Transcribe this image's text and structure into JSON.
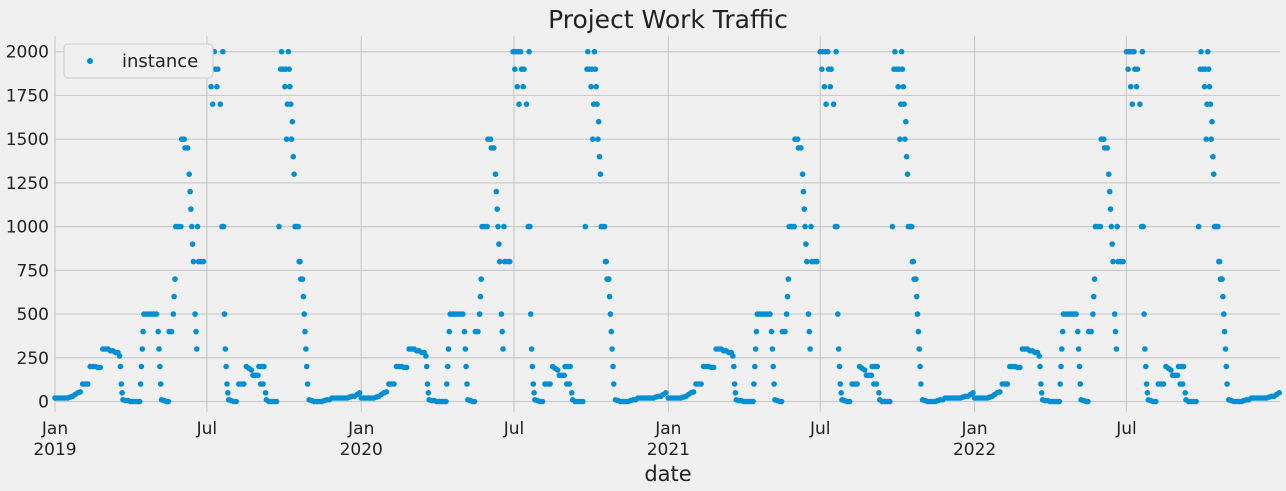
{
  "chart_data": {
    "type": "scatter",
    "title": "Project Work Traffic",
    "xlabel": "date",
    "ylabel": "",
    "ylim": [
      -60,
      2090
    ],
    "xlim": [
      "2019-01-01",
      "2022-12-31"
    ],
    "grid": true,
    "legend_position": "top-left",
    "yticks": [
      0,
      250,
      500,
      750,
      1000,
      1250,
      1500,
      1750,
      2000
    ],
    "xticks": [
      {
        "date": "2019-01-01",
        "label": "Jan",
        "sublabel": "2019"
      },
      {
        "date": "2019-07-01",
        "label": "Jul",
        "sublabel": ""
      },
      {
        "date": "2020-01-01",
        "label": "Jan",
        "sublabel": "2020"
      },
      {
        "date": "2020-07-01",
        "label": "Jul",
        "sublabel": ""
      },
      {
        "date": "2021-01-01",
        "label": "Jan",
        "sublabel": "2021"
      },
      {
        "date": "2021-07-01",
        "label": "Jul",
        "sublabel": ""
      },
      {
        "date": "2022-01-01",
        "label": "Jan",
        "sublabel": "2022"
      },
      {
        "date": "2022-07-01",
        "label": "Jul",
        "sublabel": ""
      }
    ],
    "series": [
      {
        "name": "instance",
        "color": "#008fd5",
        "marker": "dot",
        "points": [
          {
            "x": "2019-01-01",
            "y": 20
          },
          {
            "x": "2019-01-04",
            "y": 20
          },
          {
            "x": "2019-01-07",
            "y": 20
          },
          {
            "x": "2019-01-10",
            "y": 20
          },
          {
            "x": "2019-01-13",
            "y": 20
          },
          {
            "x": "2019-01-16",
            "y": 20
          },
          {
            "x": "2019-01-19",
            "y": 25
          },
          {
            "x": "2019-01-22",
            "y": 30
          },
          {
            "x": "2019-01-25",
            "y": 40
          },
          {
            "x": "2019-01-28",
            "y": 50
          },
          {
            "x": "2019-01-31",
            "y": 55
          },
          {
            "x": "2019-02-03",
            "y": 100
          },
          {
            "x": "2019-02-06",
            "y": 100
          },
          {
            "x": "2019-02-09",
            "y": 100
          },
          {
            "x": "2019-02-12",
            "y": 200
          },
          {
            "x": "2019-02-15",
            "y": 200
          },
          {
            "x": "2019-02-18",
            "y": 200
          },
          {
            "x": "2019-02-21",
            "y": 195
          },
          {
            "x": "2019-02-24",
            "y": 195
          },
          {
            "x": "2019-02-27",
            "y": 300
          },
          {
            "x": "2019-03-02",
            "y": 300
          },
          {
            "x": "2019-03-05",
            "y": 300
          },
          {
            "x": "2019-03-08",
            "y": 290
          },
          {
            "x": "2019-03-11",
            "y": 290
          },
          {
            "x": "2019-03-14",
            "y": 280
          },
          {
            "x": "2019-03-17",
            "y": 280
          },
          {
            "x": "2019-03-19",
            "y": 260
          },
          {
            "x": "2019-03-20",
            "y": 200
          },
          {
            "x": "2019-03-21",
            "y": 100
          },
          {
            "x": "2019-03-22",
            "y": 50
          },
          {
            "x": "2019-03-23",
            "y": 10
          },
          {
            "x": "2019-03-26",
            "y": 5
          },
          {
            "x": "2019-03-29",
            "y": 5
          },
          {
            "x": "2019-04-01",
            "y": 0
          },
          {
            "x": "2019-04-04",
            "y": 0
          },
          {
            "x": "2019-04-07",
            "y": 0
          },
          {
            "x": "2019-04-10",
            "y": 0
          },
          {
            "x": "2019-04-12",
            "y": 0
          },
          {
            "x": "2019-04-13",
            "y": 100
          },
          {
            "x": "2019-04-14",
            "y": 200
          },
          {
            "x": "2019-04-15",
            "y": 300
          },
          {
            "x": "2019-04-16",
            "y": 400
          },
          {
            "x": "2019-04-17",
            "y": 500
          },
          {
            "x": "2019-04-20",
            "y": 500
          },
          {
            "x": "2019-04-23",
            "y": 500
          },
          {
            "x": "2019-04-26",
            "y": 500
          },
          {
            "x": "2019-04-29",
            "y": 500
          },
          {
            "x": "2019-05-02",
            "y": 500
          },
          {
            "x": "2019-05-04",
            "y": 400
          },
          {
            "x": "2019-05-05",
            "y": 300
          },
          {
            "x": "2019-05-06",
            "y": 200
          },
          {
            "x": "2019-05-07",
            "y": 100
          },
          {
            "x": "2019-05-08",
            "y": 10
          },
          {
            "x": "2019-05-11",
            "y": 5
          },
          {
            "x": "2019-05-14",
            "y": 0
          },
          {
            "x": "2019-05-16",
            "y": 0
          },
          {
            "x": "2019-05-17",
            "y": 400
          },
          {
            "x": "2019-05-20",
            "y": 400
          },
          {
            "x": "2019-05-22",
            "y": 500
          },
          {
            "x": "2019-05-23",
            "y": 600
          },
          {
            "x": "2019-05-24",
            "y": 700
          },
          {
            "x": "2019-05-25",
            "y": 1000
          },
          {
            "x": "2019-05-28",
            "y": 1000
          },
          {
            "x": "2019-05-31",
            "y": 1000
          },
          {
            "x": "2019-06-01",
            "y": 1500
          },
          {
            "x": "2019-06-04",
            "y": 1500
          },
          {
            "x": "2019-06-05",
            "y": 1450
          },
          {
            "x": "2019-06-08",
            "y": 1450
          },
          {
            "x": "2019-06-10",
            "y": 1300
          },
          {
            "x": "2019-06-11",
            "y": 1200
          },
          {
            "x": "2019-06-12",
            "y": 1100
          },
          {
            "x": "2019-06-13",
            "y": 1000
          },
          {
            "x": "2019-06-14",
            "y": 900
          },
          {
            "x": "2019-06-15",
            "y": 800
          },
          {
            "x": "2019-06-17",
            "y": 500
          },
          {
            "x": "2019-06-18",
            "y": 400
          },
          {
            "x": "2019-06-19",
            "y": 300
          },
          {
            "x": "2019-06-20",
            "y": 1000
          },
          {
            "x": "2019-06-21",
            "y": 800
          },
          {
            "x": "2019-06-24",
            "y": 800
          },
          {
            "x": "2019-06-27",
            "y": 800
          },
          {
            "x": "2019-07-01",
            "y": 2000
          },
          {
            "x": "2019-07-04",
            "y": 2000
          },
          {
            "x": "2019-07-07",
            "y": 2000
          },
          {
            "x": "2019-07-10",
            "y": 2000
          },
          {
            "x": "2019-07-03",
            "y": 1900
          },
          {
            "x": "2019-07-06",
            "y": 1800
          },
          {
            "x": "2019-07-08",
            "y": 1700
          },
          {
            "x": "2019-07-11",
            "y": 1900
          },
          {
            "x": "2019-07-13",
            "y": 1800
          },
          {
            "x": "2019-07-14",
            "y": 1900
          },
          {
            "x": "2019-07-17",
            "y": 1700
          },
          {
            "x": "2019-07-19",
            "y": 1000
          },
          {
            "x": "2019-07-21",
            "y": 1000
          },
          {
            "x": "2019-07-20",
            "y": 2000
          },
          {
            "x": "2019-07-22",
            "y": 500
          },
          {
            "x": "2019-07-23",
            "y": 300
          },
          {
            "x": "2019-07-24",
            "y": 200
          },
          {
            "x": "2019-07-25",
            "y": 100
          },
          {
            "x": "2019-07-26",
            "y": 50
          },
          {
            "x": "2019-07-27",
            "y": 10
          },
          {
            "x": "2019-07-30",
            "y": 5
          },
          {
            "x": "2019-08-02",
            "y": 0
          },
          {
            "x": "2019-08-05",
            "y": 0
          },
          {
            "x": "2019-08-08",
            "y": 100
          },
          {
            "x": "2019-08-11",
            "y": 100
          },
          {
            "x": "2019-08-14",
            "y": 100
          },
          {
            "x": "2019-08-17",
            "y": 200
          },
          {
            "x": "2019-08-20",
            "y": 190
          },
          {
            "x": "2019-08-23",
            "y": 180
          },
          {
            "x": "2019-08-25",
            "y": 150
          },
          {
            "x": "2019-08-28",
            "y": 150
          },
          {
            "x": "2019-08-31",
            "y": 150
          },
          {
            "x": "2019-09-01",
            "y": 200
          },
          {
            "x": "2019-09-04",
            "y": 200
          },
          {
            "x": "2019-09-07",
            "y": 200
          },
          {
            "x": "2019-09-03",
            "y": 100
          },
          {
            "x": "2019-09-06",
            "y": 100
          },
          {
            "x": "2019-09-09",
            "y": 50
          },
          {
            "x": "2019-09-10",
            "y": 10
          },
          {
            "x": "2019-09-13",
            "y": 0
          },
          {
            "x": "2019-09-16",
            "y": 0
          },
          {
            "x": "2019-09-19",
            "y": 0
          },
          {
            "x": "2019-09-22",
            "y": 0
          },
          {
            "x": "2019-09-25",
            "y": 1000
          },
          {
            "x": "2019-09-28",
            "y": 2000
          },
          {
            "x": "2019-09-27",
            "y": 1900
          },
          {
            "x": "2019-09-30",
            "y": 1900
          },
          {
            "x": "2019-10-03",
            "y": 1900
          },
          {
            "x": "2019-10-02",
            "y": 1800
          },
          {
            "x": "2019-10-05",
            "y": 1700
          },
          {
            "x": "2019-10-04",
            "y": 1500
          },
          {
            "x": "2019-10-06",
            "y": 2000
          },
          {
            "x": "2019-10-07",
            "y": 1900
          },
          {
            "x": "2019-10-08",
            "y": 1800
          },
          {
            "x": "2019-10-09",
            "y": 1700
          },
          {
            "x": "2019-10-10",
            "y": 1500
          },
          {
            "x": "2019-10-11",
            "y": 1600
          },
          {
            "x": "2019-10-12",
            "y": 1400
          },
          {
            "x": "2019-10-13",
            "y": 1300
          },
          {
            "x": "2019-10-14",
            "y": 1000
          },
          {
            "x": "2019-10-16",
            "y": 1000
          },
          {
            "x": "2019-10-18",
            "y": 1000
          },
          {
            "x": "2019-10-19",
            "y": 800
          },
          {
            "x": "2019-10-20",
            "y": 800
          },
          {
            "x": "2019-10-21",
            "y": 700
          },
          {
            "x": "2019-10-23",
            "y": 700
          },
          {
            "x": "2019-10-24",
            "y": 600
          },
          {
            "x": "2019-10-25",
            "y": 500
          },
          {
            "x": "2019-10-26",
            "y": 400
          },
          {
            "x": "2019-10-27",
            "y": 300
          },
          {
            "x": "2019-10-28",
            "y": 200
          },
          {
            "x": "2019-10-29",
            "y": 100
          },
          {
            "x": "2019-10-31",
            "y": 10
          },
          {
            "x": "2019-11-03",
            "y": 5
          },
          {
            "x": "2019-11-06",
            "y": 0
          },
          {
            "x": "2019-11-09",
            "y": 0
          },
          {
            "x": "2019-11-12",
            "y": 0
          },
          {
            "x": "2019-11-15",
            "y": 0
          },
          {
            "x": "2019-11-18",
            "y": 5
          },
          {
            "x": "2019-11-21",
            "y": 10
          },
          {
            "x": "2019-11-24",
            "y": 10
          },
          {
            "x": "2019-11-27",
            "y": 20
          },
          {
            "x": "2019-11-30",
            "y": 20
          },
          {
            "x": "2019-12-03",
            "y": 20
          },
          {
            "x": "2019-12-06",
            "y": 20
          },
          {
            "x": "2019-12-09",
            "y": 20
          },
          {
            "x": "2019-12-12",
            "y": 20
          },
          {
            "x": "2019-12-15",
            "y": 20
          },
          {
            "x": "2019-12-18",
            "y": 25
          },
          {
            "x": "2019-12-21",
            "y": 30
          },
          {
            "x": "2019-12-24",
            "y": 30
          },
          {
            "x": "2019-12-27",
            "y": 40
          },
          {
            "x": "2019-12-30",
            "y": 50
          }
        ]
      }
    ]
  }
}
